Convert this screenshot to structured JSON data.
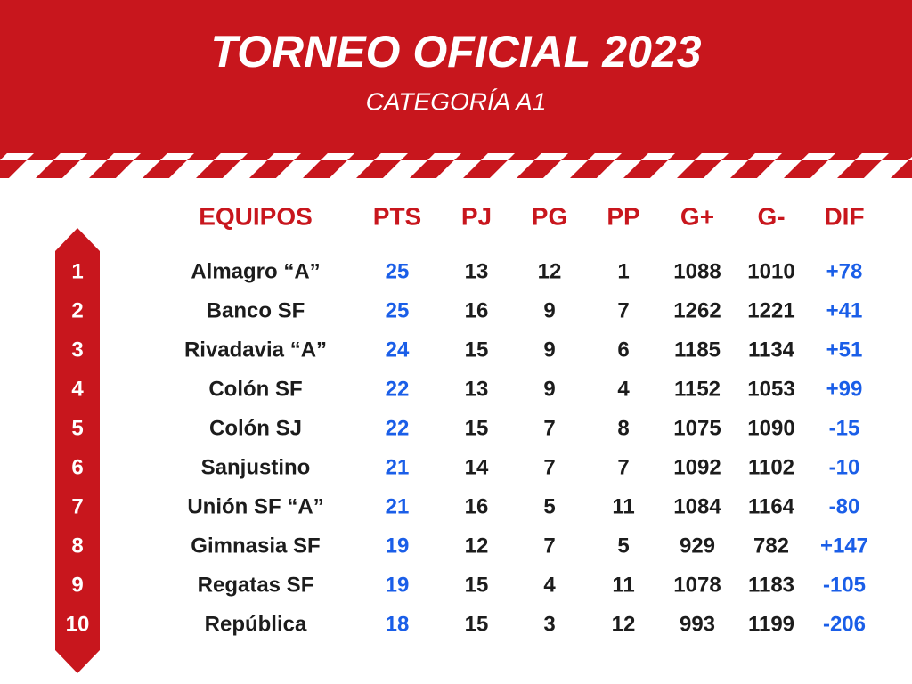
{
  "header": {
    "title": "TORNEO OFICIAL 2023",
    "subtitle": "CATEGORÍA A1"
  },
  "table": {
    "columns": [
      "EQUIPOS",
      "PTS",
      "PJ",
      "PG",
      "PP",
      "G+",
      "G-",
      "DIF"
    ],
    "ranks": [
      "1",
      "2",
      "3",
      "4",
      "5",
      "6",
      "7",
      "8",
      "9",
      "10"
    ],
    "rows": [
      [
        "Almagro “A”",
        "25",
        "13",
        "12",
        "1",
        "1088",
        "1010",
        "+78"
      ],
      [
        "Banco SF",
        "25",
        "16",
        "9",
        "7",
        "1262",
        "1221",
        "+41"
      ],
      [
        "Rivadavia “A”",
        "24",
        "15",
        "9",
        "6",
        "1185",
        "1134",
        "+51"
      ],
      [
        "Colón SF",
        "22",
        "13",
        "9",
        "4",
        "1152",
        "1053",
        "+99"
      ],
      [
        "Colón SJ",
        "22",
        "15",
        "7",
        "8",
        "1075",
        "1090",
        "-15"
      ],
      [
        "Sanjustino",
        "21",
        "14",
        "7",
        "7",
        "1092",
        "1102",
        "-10"
      ],
      [
        "Unión SF “A”",
        "21",
        "16",
        "5",
        "11",
        "1084",
        "1164",
        "-80"
      ],
      [
        "Gimnasia SF",
        "19",
        "12",
        "7",
        "5",
        "929",
        "782",
        "+147"
      ],
      [
        "Regatas SF",
        "19",
        "15",
        "4",
        "11",
        "1078",
        "1183",
        "-105"
      ],
      [
        "República",
        "18",
        "15",
        "3",
        "12",
        "993",
        "1199",
        "-206"
      ]
    ]
  }
}
